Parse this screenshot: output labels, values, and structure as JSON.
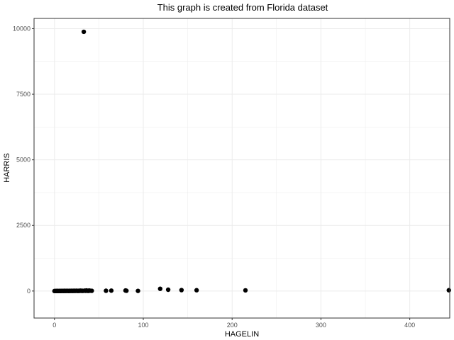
{
  "chart_data": {
    "type": "scatter",
    "title": "This graph is created from Florida dataset",
    "xlabel": "HAGELIN",
    "ylabel": "HARRIS",
    "xlim": [
      -23,
      445
    ],
    "ylim": [
      -1030,
      10390
    ],
    "x_ticks": [
      0,
      100,
      200,
      300,
      400
    ],
    "y_ticks": [
      0,
      2500,
      5000,
      7500,
      10000
    ],
    "grid": true,
    "legend": "none",
    "colors": {
      "points": "#000000",
      "grid": "#ebebeb",
      "panel_border": "#333333",
      "background": "#ffffff"
    },
    "points": [
      {
        "x": 0,
        "y": 0
      },
      {
        "x": 1,
        "y": 2
      },
      {
        "x": 2,
        "y": 1
      },
      {
        "x": 3,
        "y": 3
      },
      {
        "x": 4,
        "y": 0
      },
      {
        "x": 5,
        "y": 2
      },
      {
        "x": 6,
        "y": 4
      },
      {
        "x": 7,
        "y": 1
      },
      {
        "x": 8,
        "y": 3
      },
      {
        "x": 9,
        "y": 5
      },
      {
        "x": 10,
        "y": 2
      },
      {
        "x": 11,
        "y": 6
      },
      {
        "x": 12,
        "y": 3
      },
      {
        "x": 13,
        "y": 4
      },
      {
        "x": 14,
        "y": 8
      },
      {
        "x": 15,
        "y": 5
      },
      {
        "x": 16,
        "y": 2
      },
      {
        "x": 17,
        "y": 7
      },
      {
        "x": 18,
        "y": 4
      },
      {
        "x": 19,
        "y": 9
      },
      {
        "x": 20,
        "y": 6
      },
      {
        "x": 21,
        "y": 3
      },
      {
        "x": 22,
        "y": 10
      },
      {
        "x": 23,
        "y": 5
      },
      {
        "x": 24,
        "y": 8
      },
      {
        "x": 25,
        "y": 12
      },
      {
        "x": 26,
        "y": 4
      },
      {
        "x": 27,
        "y": 9
      },
      {
        "x": 28,
        "y": 6
      },
      {
        "x": 29,
        "y": 14
      },
      {
        "x": 30,
        "y": 7
      },
      {
        "x": 31,
        "y": 11
      },
      {
        "x": 32,
        "y": 5
      },
      {
        "x": 33,
        "y": 9880
      },
      {
        "x": 34,
        "y": 15
      },
      {
        "x": 35,
        "y": 8
      },
      {
        "x": 36,
        "y": 20
      },
      {
        "x": 37,
        "y": 10
      },
      {
        "x": 38,
        "y": 6
      },
      {
        "x": 39,
        "y": 18
      },
      {
        "x": 40,
        "y": 12
      },
      {
        "x": 42,
        "y": 9
      },
      {
        "x": 58,
        "y": 10
      },
      {
        "x": 64,
        "y": 15
      },
      {
        "x": 80,
        "y": 20
      },
      {
        "x": 81,
        "y": 10
      },
      {
        "x": 94,
        "y": 5
      },
      {
        "x": 119,
        "y": 85
      },
      {
        "x": 128,
        "y": 50
      },
      {
        "x": 143,
        "y": 35
      },
      {
        "x": 160,
        "y": 30
      },
      {
        "x": 215,
        "y": 25
      },
      {
        "x": 444,
        "y": 30
      }
    ]
  }
}
